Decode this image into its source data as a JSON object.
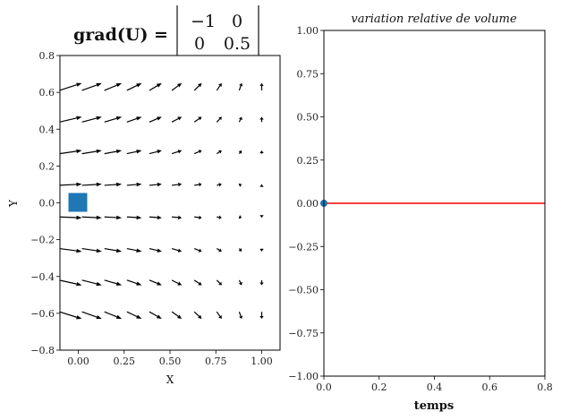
{
  "chart_data": [
    {
      "type": "quiver",
      "title": {
        "lhs": "grad(U) =",
        "matrix": [
          [
            "−1",
            "0"
          ],
          [
            "0",
            "0.5"
          ]
        ]
      },
      "xlabel": "X",
      "ylabel": "Y",
      "xlim": [
        -0.1,
        1.1
      ],
      "ylim": [
        -0.8,
        0.8
      ],
      "xticks": [
        "0.00",
        "0.25",
        "0.50",
        "0.75",
        "1.00"
      ],
      "xtick_values": [
        0,
        0.25,
        0.5,
        0.75,
        1.0
      ],
      "yticks": [
        "−0.8",
        "−0.6",
        "−0.4",
        "−0.2",
        "0.0",
        "0.2",
        "0.4",
        "0.6",
        "0.8"
      ],
      "ytick_values": [
        -0.8,
        -0.6,
        -0.4,
        -0.2,
        0,
        0.2,
        0.4,
        0.6,
        0.8
      ],
      "grid": {
        "x_start": 0,
        "x_end": 1,
        "nx": 10,
        "y_start": -0.63,
        "y_end": 0.65,
        "ny": 8
      },
      "field": {
        "gradient": [
          [
            -1,
            0
          ],
          [
            0,
            0.5
          ]
        ],
        "reference_point": [
          1,
          0
        ]
      },
      "marker": {
        "shape": "square",
        "x": 0,
        "y": 0,
        "color": "#1f77b4"
      },
      "arrow_color": "#000000",
      "grid_lines": false
    },
    {
      "type": "line",
      "title": "variation relative de volume",
      "xlabel": "temps",
      "ylabel": "",
      "xlim": [
        0,
        0.8
      ],
      "ylim": [
        -1,
        1
      ],
      "xticks": [
        "0.0",
        "0.2",
        "0.4",
        "0.6",
        "0.8"
      ],
      "xtick_values": [
        0,
        0.2,
        0.4,
        0.6,
        0.8
      ],
      "yticks": [
        "−1.00",
        "−0.75",
        "−0.50",
        "−0.25",
        "0.00",
        "0.25",
        "0.50",
        "0.75",
        "1.00"
      ],
      "ytick_values": [
        -1,
        -0.75,
        -0.5,
        -0.25,
        0,
        0.25,
        0.5,
        0.75,
        1
      ],
      "series": [
        {
          "x": [
            0,
            0.8
          ],
          "y": [
            0,
            0
          ],
          "color": "#ff0000"
        }
      ],
      "points": [
        {
          "x": 0,
          "y": 0,
          "color": "#1f77b4"
        }
      ],
      "grid_lines": false
    }
  ]
}
